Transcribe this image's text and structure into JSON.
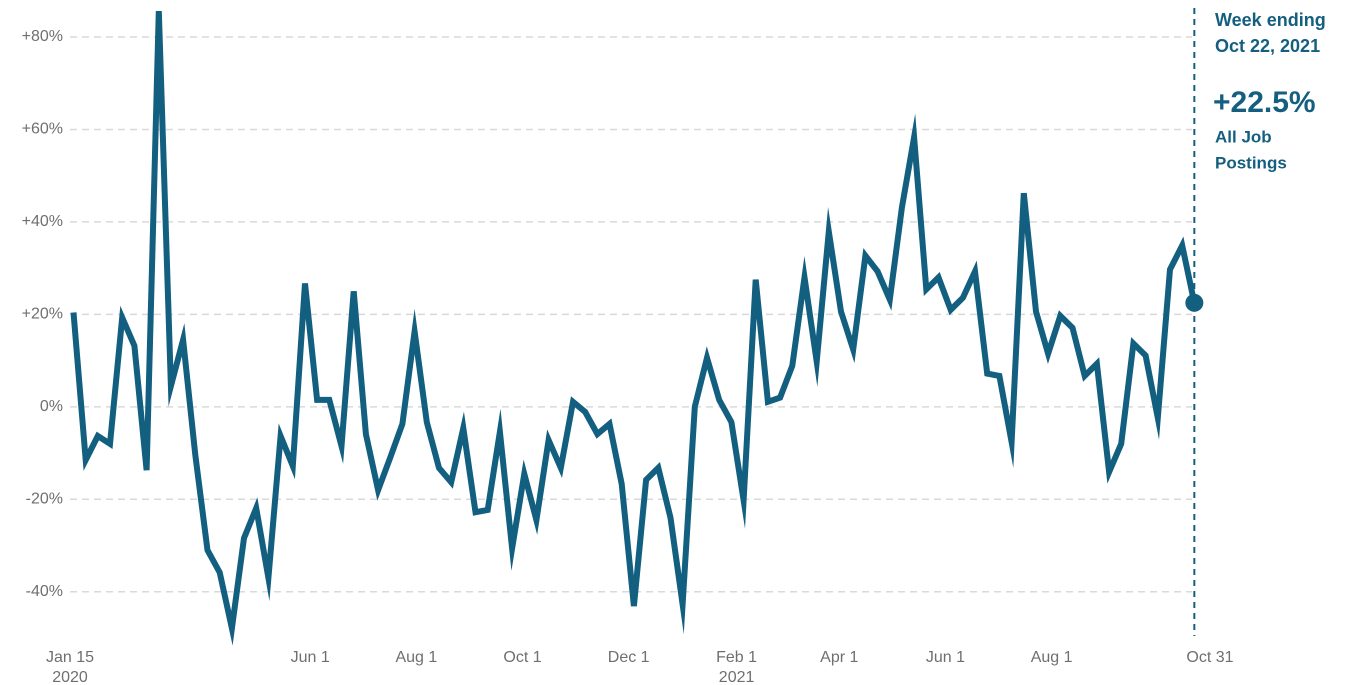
{
  "chart_data": {
    "type": "line",
    "color": "#135f80",
    "x": [
      "2020-01-17",
      "2020-01-24",
      "2020-01-31",
      "2020-02-07",
      "2020-02-14",
      "2020-02-21",
      "2020-02-28",
      "2020-03-06",
      "2020-03-13",
      "2020-03-20",
      "2020-03-27",
      "2020-04-03",
      "2020-04-10",
      "2020-04-17",
      "2020-04-24",
      "2020-05-01",
      "2020-05-08",
      "2020-05-15",
      "2020-05-22",
      "2020-05-29",
      "2020-06-05",
      "2020-06-12",
      "2020-06-19",
      "2020-06-26",
      "2020-07-03",
      "2020-07-10",
      "2020-07-17",
      "2020-07-24",
      "2020-07-31",
      "2020-08-07",
      "2020-08-14",
      "2020-08-21",
      "2020-08-28",
      "2020-09-04",
      "2020-09-11",
      "2020-09-18",
      "2020-09-25",
      "2020-10-02",
      "2020-10-09",
      "2020-10-16",
      "2020-10-23",
      "2020-10-30",
      "2020-11-06",
      "2020-11-13",
      "2020-11-20",
      "2020-11-27",
      "2020-12-04",
      "2020-12-11",
      "2020-12-18",
      "2020-12-25",
      "2021-01-01",
      "2021-01-08",
      "2021-01-15",
      "2021-01-22",
      "2021-01-29",
      "2021-02-05",
      "2021-02-12",
      "2021-02-19",
      "2021-02-26",
      "2021-03-05",
      "2021-03-12",
      "2021-03-19",
      "2021-03-26",
      "2021-04-02",
      "2021-04-09",
      "2021-04-16",
      "2021-04-23",
      "2021-04-30",
      "2021-05-07",
      "2021-05-14",
      "2021-05-21",
      "2021-05-28",
      "2021-06-04",
      "2021-06-11",
      "2021-06-18",
      "2021-06-25",
      "2021-07-02",
      "2021-07-09",
      "2021-07-16",
      "2021-07-23",
      "2021-07-30",
      "2021-08-06",
      "2021-08-13",
      "2021-08-20",
      "2021-08-27",
      "2021-09-03",
      "2021-09-10",
      "2021-09-17",
      "2021-09-24",
      "2021-10-01",
      "2021-10-08",
      "2021-10-15",
      "2021-10-22"
    ],
    "values": [
      20.4,
      -11.5,
      -6.3,
      -8,
      19.3,
      13.2,
      -13.7,
      85.6,
      4.5,
      14.5,
      -10.4,
      -31,
      -35.8,
      -47.9,
      -28.4,
      -21.9,
      -37,
      -6.3,
      -12.8,
      26.7,
      1.5,
      1.5,
      -8.5,
      25,
      -5.9,
      -18,
      -11,
      -3.7,
      16.3,
      -3.3,
      -13.2,
      -16.3,
      -4.6,
      -22.8,
      -22.3,
      -5.4,
      -30.6,
      -14.5,
      -24.5,
      -7.2,
      -13.2,
      1.1,
      -1.1,
      -5.9,
      -3.7,
      -16.7,
      -43.1,
      -15.8,
      -13.2,
      -24,
      -42.7,
      0,
      10.6,
      1.5,
      -3.3,
      -20.2,
      27.5,
      1.1,
      2,
      8.9,
      28,
      9.8,
      37.9,
      20.6,
      12.4,
      32.7,
      29.3,
      23.2,
      43.1,
      58.3,
      25.4,
      28,
      21,
      23.6,
      29.3,
      7.2,
      6.7,
      -7.6,
      46.2,
      20.6,
      11.5,
      19.7,
      17.1,
      6.7,
      9.3,
      -14.1,
      -8,
      13.7,
      11.1,
      -2.4,
      29.7,
      34.9,
      22.5
    ],
    "xlim": [
      "2020-01-15",
      "2021-10-31"
    ],
    "xticks": [
      {
        "value": "2020-01-15",
        "label": "Jan 15"
      },
      {
        "value": "2020-06-01",
        "label": "Jun 1"
      },
      {
        "value": "2020-08-01",
        "label": "Aug 1"
      },
      {
        "value": "2020-10-01",
        "label": "Oct 1"
      },
      {
        "value": "2020-12-01",
        "label": "Dec 1"
      },
      {
        "value": "2021-02-01",
        "label": "Feb 1"
      },
      {
        "value": "2021-04-01",
        "label": "Apr 1"
      },
      {
        "value": "2021-06-01",
        "label": "Jun 1"
      },
      {
        "value": "2021-08-01",
        "label": "Aug 1"
      },
      {
        "value": "2021-10-31",
        "label": "Oct 31"
      }
    ],
    "year_labels": [
      {
        "value": "2020-01-15",
        "label": "2020"
      },
      {
        "value": "2021-02-01",
        "label": "2021"
      }
    ],
    "ylim": [
      -50,
      88
    ],
    "yticks": [
      {
        "value": -40,
        "label": "-40%"
      },
      {
        "value": -20,
        "label": "-20%"
      },
      {
        "value": 0,
        "label": "0%"
      },
      {
        "value": 20,
        "label": "+20%"
      },
      {
        "value": 40,
        "label": "+40%"
      },
      {
        "value": 60,
        "label": "+60%"
      },
      {
        "value": 80,
        "label": "+80%"
      }
    ],
    "grid": true,
    "annotation": {
      "x": "2021-10-22",
      "lines": [
        "Week ending",
        "Oct 22, 2021"
      ],
      "value": 22.5,
      "value_label": "+22.5%",
      "label_lines": [
        "All Job",
        "Postings"
      ]
    }
  }
}
